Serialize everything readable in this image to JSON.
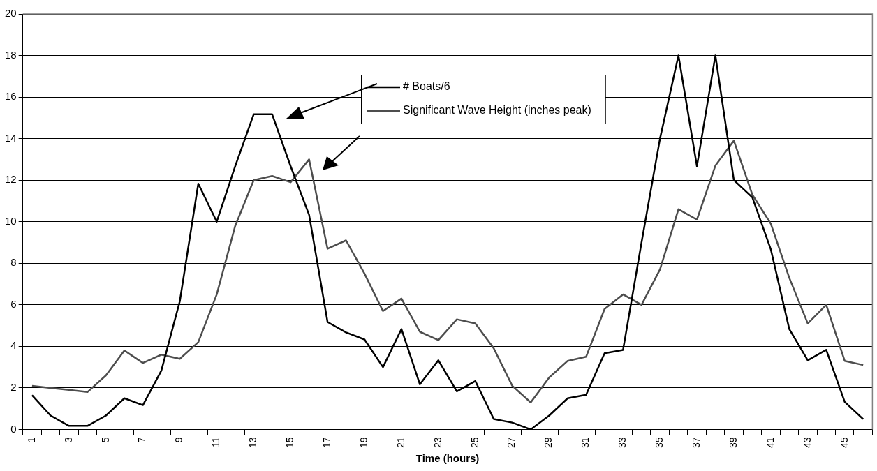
{
  "chart_data": {
    "type": "line",
    "xlabel": "Time (hours)",
    "categories": [
      "1",
      null,
      "3",
      null,
      "5",
      null,
      "7",
      null,
      "9",
      null,
      "11",
      null,
      "13",
      null,
      "15",
      null,
      "17",
      null,
      "19",
      null,
      "21",
      null,
      "23",
      null,
      "25",
      null,
      "27",
      null,
      "29",
      null,
      "31",
      null,
      "33",
      null,
      "35",
      null,
      "37",
      null,
      "39",
      null,
      "41",
      null,
      "43",
      null,
      "45",
      null
    ],
    "series": [
      {
        "name": "# Boats/6",
        "color": "#000000",
        "values": [
          1.65,
          0.67,
          0.17,
          0.17,
          0.67,
          1.5,
          1.17,
          2.83,
          6.17,
          11.83,
          10,
          12.67,
          15.17,
          15.17,
          12.67,
          10.33,
          5.17,
          4.67,
          4.33,
          3,
          4.83,
          2.17,
          3.33,
          1.83,
          2.33,
          0.5,
          0.33,
          0,
          0.67,
          1.5,
          1.67,
          3.67,
          3.83,
          9,
          14,
          18,
          12.67,
          18,
          12,
          11.17,
          8.67,
          4.83,
          3.33,
          3.83,
          1.33,
          0.5
        ]
      },
      {
        "name": "Significant Wave Height (inches peak)",
        "color": "#4d4d4d",
        "values": [
          2.1,
          2,
          1.9,
          1.8,
          2.6,
          3.8,
          3.2,
          3.6,
          3.4,
          4.2,
          6.5,
          9.8,
          12,
          12.2,
          11.9,
          13,
          8.7,
          9.1,
          7.5,
          5.7,
          6.3,
          4.7,
          4.3,
          5.3,
          5.1,
          3.9,
          2.1,
          1.3,
          2.5,
          3.3,
          3.5,
          5.8,
          6.5,
          6,
          7.7,
          10.6,
          10.1,
          12.7,
          13.9,
          11.3,
          9.9,
          7.3,
          5.1,
          6,
          3.3,
          3.1
        ]
      }
    ],
    "ylim": [
      0,
      20
    ],
    "yticks": [
      0,
      2,
      4,
      6,
      8,
      10,
      12,
      14,
      16,
      18,
      20
    ],
    "grid": "y",
    "legend": "top",
    "marker": "none",
    "line_style": "solid"
  }
}
